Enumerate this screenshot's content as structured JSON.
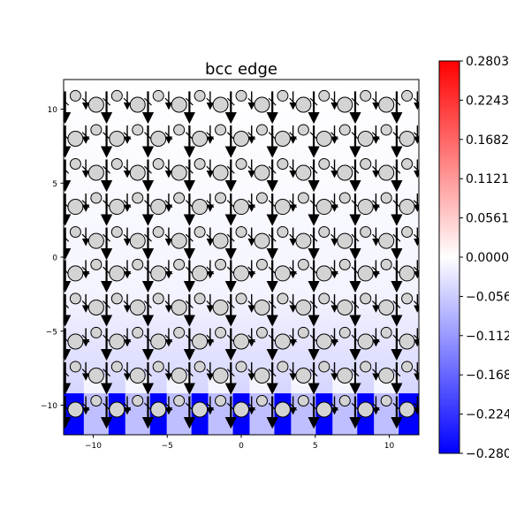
{
  "chart_data": {
    "type": "heatmap",
    "title": "bcc edge",
    "xlabel": "",
    "ylabel": "",
    "xlim": [
      -12,
      12
    ],
    "ylim": [
      -12,
      12
    ],
    "x_ticks": [
      -10,
      -5,
      0,
      5,
      10
    ],
    "y_ticks": [
      10,
      5,
      0,
      -5,
      -10
    ],
    "x_tick_labels": [
      "−10",
      "−5",
      "0",
      "5",
      "10"
    ],
    "y_tick_labels": [
      "10",
      "5",
      "0",
      "−5",
      "−10"
    ],
    "colorbar": {
      "colormap": "bwr",
      "min": -0.2803,
      "max": 0.2803,
      "ticks": [
        0.2803,
        0.2243,
        0.1682,
        0.1121,
        0.0561,
        0.0,
        -0.0561,
        -0.1121,
        -0.1682,
        -0.2243,
        -0.2803
      ],
      "tick_labels": [
        "0.2803",
        "0.2243",
        "0.1682",
        "0.1121",
        "0.0561",
        "0.0000",
        "−0.056",
        "−0.112",
        "−0.168",
        "−0.224",
        "−0.280"
      ]
    },
    "atoms": {
      "large_row_y": [
        10.3,
        8.0,
        5.7,
        3.4,
        1.1,
        -1.1,
        -3.4,
        -5.7,
        -8.0,
        -10.3
      ],
      "small_row_y": [
        10.3,
        8.0,
        5.7,
        3.4,
        1.1,
        -1.1,
        -3.4,
        -5.7,
        -8.0,
        -10.3
      ],
      "x_large": [
        -11.2,
        -8.4,
        -5.6,
        -2.8,
        0.0,
        2.8,
        5.6,
        8.4,
        11.2
      ],
      "x_small": [
        -9.8,
        -7.0,
        -4.2,
        -1.4,
        1.4,
        4.2,
        7.0,
        9.8
      ],
      "fill": "#d3d3d3",
      "stroke": "#000000"
    },
    "grid": false,
    "colors": {
      "positive": "#ff0000",
      "zero": "#ffffff",
      "negative": "#0000ff"
    }
  }
}
